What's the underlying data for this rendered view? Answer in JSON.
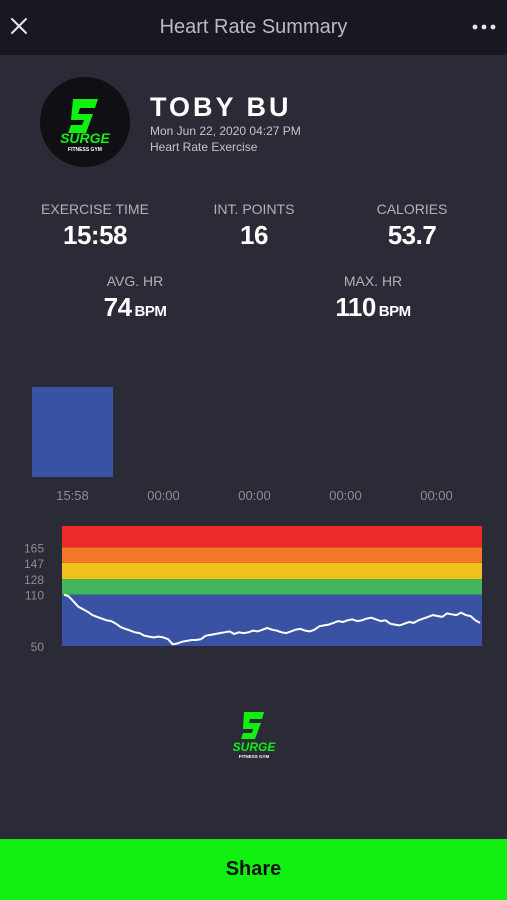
{
  "header": {
    "title": "Heart Rate Summary"
  },
  "profile": {
    "name": "TOBY BU",
    "date": "Mon Jun 22, 2020 04:27 PM",
    "session_type": "Heart Rate Exercise",
    "logo_text": "SURGE",
    "logo_subtext": "FITNESS GYM"
  },
  "stats": {
    "exercise_time": {
      "label": "EXERCISE TIME",
      "value": "15:58"
    },
    "int_points": {
      "label": "INT. POINTS",
      "value": "16"
    },
    "calories": {
      "label": "CALORIES",
      "value": "53.7"
    },
    "avg_hr": {
      "label": "AVG. HR",
      "value": "74",
      "unit": "BPM"
    },
    "max_hr": {
      "label": "MAX. HR",
      "value": "110",
      "unit": "BPM"
    }
  },
  "colors": {
    "accent_green": "#12f012",
    "zone_red": "#ee2a2a",
    "zone_orange": "#f07a2a",
    "zone_yellow": "#f2c21c",
    "zone_green": "#3fb65a",
    "zone_blue": "#3a52a4"
  },
  "chart_data": [
    {
      "type": "bar",
      "categories": [
        "15:58",
        "00:00",
        "00:00",
        "00:00",
        "00:00"
      ],
      "values": [
        15.97,
        0,
        0,
        0,
        0
      ],
      "ylim": [
        0,
        15.97
      ]
    },
    {
      "type": "line",
      "y_ticks": [
        50,
        110,
        128,
        147,
        165
      ],
      "ylim": [
        50,
        190
      ],
      "zones": [
        {
          "from": 50,
          "to": 110,
          "color": "#3a52a4"
        },
        {
          "from": 110,
          "to": 128,
          "color": "#3fb65a"
        },
        {
          "from": 128,
          "to": 147,
          "color": "#f2c21c"
        },
        {
          "from": 147,
          "to": 165,
          "color": "#f07a2a"
        },
        {
          "from": 165,
          "to": 190,
          "color": "#ee2a2a"
        }
      ],
      "series": [
        {
          "values": [
            110,
            108,
            102,
            96,
            93,
            90,
            86,
            84,
            82,
            80,
            79,
            76,
            72,
            70,
            68,
            66,
            65,
            62,
            61,
            60,
            61,
            60,
            58,
            52,
            53,
            55,
            56,
            57,
            57,
            58,
            62,
            63,
            64,
            65,
            66,
            67,
            64,
            66,
            65,
            66,
            68,
            67,
            69,
            71,
            69,
            68,
            66,
            65,
            67,
            69,
            70,
            68,
            67,
            69,
            73,
            74,
            75,
            77,
            79,
            78,
            80,
            81,
            79,
            80,
            82,
            83,
            81,
            79,
            80,
            76,
            75,
            74,
            76,
            78,
            77,
            80,
            82,
            84,
            86,
            85,
            84,
            88,
            87,
            86,
            89,
            86,
            85,
            80,
            77
          ]
        }
      ]
    }
  ],
  "actions": {
    "share_label": "Share"
  }
}
